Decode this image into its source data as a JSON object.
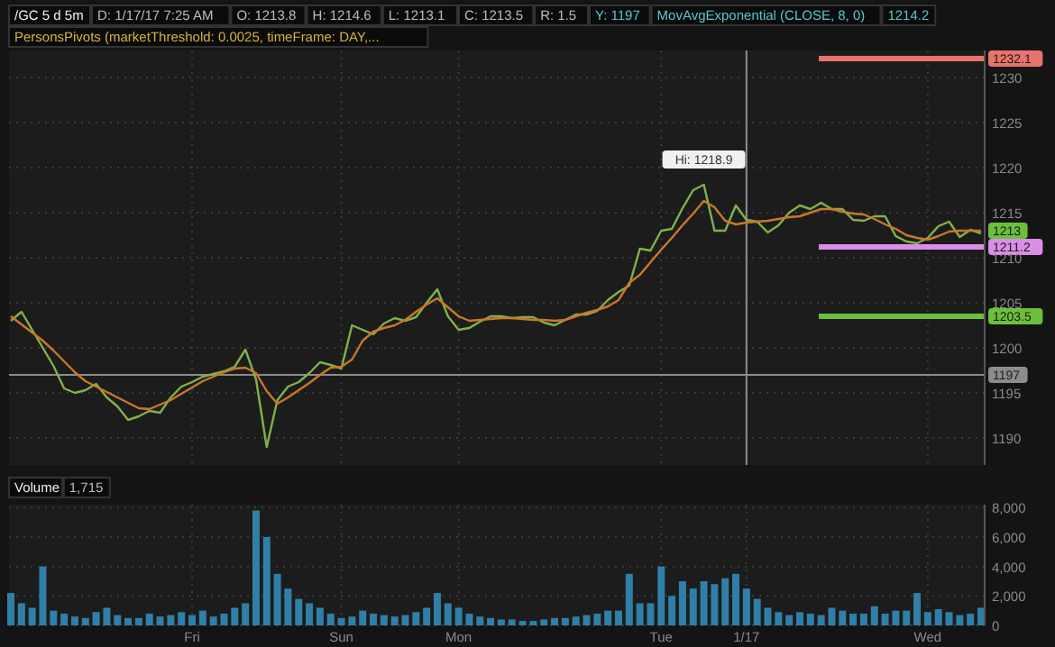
{
  "chart_data": [
    {
      "type": "line",
      "title": "/GC 5 d 5m",
      "annotations": [
        "D: 1/17/17 7:25 AM",
        "O: 1213.8",
        "H: 1214.6",
        "L: 1213.1",
        "C: 1213.5",
        "R: 1.5",
        "Y: 1197",
        "MovAvgExponential (CLOSE, 8, 0)",
        "1214.2",
        "PersonsPivots (marketThreshold: 0.0025, timeFrame: DAY,...",
        {
          "text": "Hi: 1218.9",
          "y": 1218.9
        },
        {
          "text": "1213",
          "y": 1213
        }
      ],
      "categories": [
        null,
        null,
        null,
        null,
        null,
        null,
        null,
        null,
        null,
        null,
        null,
        null,
        null,
        null,
        null,
        null,
        null,
        "Fri",
        null,
        null,
        null,
        null,
        null,
        null,
        null,
        null,
        null,
        null,
        null,
        null,
        null,
        "Sun",
        null,
        null,
        null,
        null,
        null,
        null,
        null,
        null,
        null,
        null,
        "Mon",
        null,
        null,
        null,
        null,
        null,
        null,
        null,
        null,
        null,
        null,
        null,
        null,
        null,
        null,
        null,
        null,
        null,
        null,
        "Tue",
        null,
        null,
        null,
        null,
        null,
        null,
        null,
        "1/17",
        null,
        null,
        null,
        null,
        null,
        null,
        null,
        null,
        null,
        null,
        null,
        null,
        null,
        null,
        null,
        null,
        "Wed",
        null,
        null,
        null,
        null,
        null
      ],
      "ylim": [
        1187,
        1233
      ],
      "yticks": [
        1190,
        1195,
        1200,
        1205,
        1210,
        1215,
        1220,
        1225,
        1230
      ],
      "tick_labels": "y",
      "grid": true,
      "line_style": "solid",
      "ref_lines": [
        {
          "axis": "y",
          "value": 1197,
          "label": "1197",
          "color": "#8c8c8c"
        },
        {
          "axis": "y",
          "value": 1232.1,
          "label": "1232.1",
          "color": "#e8736b"
        },
        {
          "axis": "y",
          "value": 1211.2,
          "label": "1211.2",
          "color": "#d98ee8"
        },
        {
          "axis": "y",
          "value": 1203.5,
          "label": "1203.5",
          "color": "#6cbf3b"
        },
        {
          "axis": "x",
          "value": "1/17",
          "color": "#8c8c8c"
        }
      ],
      "series": [
        {
          "color": "#7fb24a",
          "values": [
            1203.0,
            1204.0,
            1202.0,
            1200.0,
            1198.0,
            1195.5,
            1195.0,
            1195.3,
            1196.0,
            1194.5,
            1193.5,
            1192.0,
            1192.4,
            1193.0,
            1192.8,
            1194.5,
            1195.7,
            1196.2,
            1196.8,
            1197.1,
            1197.4,
            1197.9,
            1199.8,
            1196.5,
            1189.0,
            1194.2,
            1195.7,
            1196.2,
            1197.2,
            1198.4,
            1198.1,
            1197.7,
            1202.5,
            1202.0,
            1201.5,
            1202.7,
            1203.3,
            1203.0,
            1203.4,
            1205.0,
            1206.5,
            1203.5,
            1202.0,
            1202.2,
            1202.9,
            1203.5,
            1203.5,
            1203.3,
            1203.4,
            1203.4,
            1202.8,
            1202.5,
            1203.1,
            1203.7,
            1203.7,
            1204.1,
            1205.3,
            1206.2,
            1206.9,
            1211.0,
            1210.8,
            1213.0,
            1213.2,
            1215.5,
            1217.5,
            1218.1,
            1213.0,
            1213.0,
            1215.8,
            1214.2,
            1214.0,
            1212.8,
            1213.6,
            1215.0,
            1215.8,
            1215.4,
            1216.1,
            1215.4,
            1215.4,
            1214.2,
            1214.1,
            1214.6,
            1214.6,
            1212.4,
            1211.8,
            1211.6,
            1212.2,
            1213.5,
            1214.0,
            1212.3,
            1213.1,
            1212.7
          ]
        },
        {
          "color": "#c8782a",
          "values": [
            1203.5,
            1202.6,
            1201.7,
            1200.8,
            1199.7,
            1198.5,
            1197.3,
            1196.3,
            1195.7,
            1195.1,
            1194.5,
            1193.9,
            1193.3,
            1193.2,
            1193.7,
            1194.2,
            1194.9,
            1195.6,
            1196.3,
            1196.8,
            1197.3,
            1197.7,
            1197.8,
            1197.2,
            1195.2,
            1193.8,
            1194.5,
            1195.3,
            1196.1,
            1197.0,
            1197.8,
            1197.9,
            1198.7,
            1200.8,
            1201.8,
            1202.2,
            1202.5,
            1203.1,
            1204.0,
            1204.8,
            1205.5,
            1204.5,
            1203.5,
            1203.0,
            1203.1,
            1203.2,
            1203.3,
            1203.3,
            1203.2,
            1203.1,
            1203.1,
            1203.0,
            1203.1,
            1203.5,
            1203.9,
            1204.2,
            1204.6,
            1205.3,
            1207.2,
            1208.1,
            1209.5,
            1210.9,
            1212.2,
            1213.6,
            1214.9,
            1216.3,
            1215.6,
            1214.1,
            1213.7,
            1213.9,
            1214.0,
            1214.1,
            1214.3,
            1214.5,
            1214.6,
            1215.0,
            1215.4,
            1215.4,
            1215.1,
            1214.9,
            1214.8,
            1214.3,
            1213.7,
            1213.2,
            1212.5,
            1212.2,
            1212.0,
            1212.4,
            1212.9,
            1213.0,
            1213.0,
            1213.0
          ]
        }
      ]
    },
    {
      "type": "bar",
      "title": "Volume",
      "annotations": [
        "1,715"
      ],
      "ylim": [
        0,
        8200
      ],
      "categories": [
        null,
        null,
        null,
        null,
        null,
        null,
        null,
        null,
        null,
        null,
        null,
        null,
        null,
        null,
        null,
        null,
        null,
        "Fri",
        null,
        null,
        null,
        null,
        null,
        null,
        null,
        null,
        null,
        null,
        null,
        null,
        null,
        "Sun",
        null,
        null,
        null,
        null,
        null,
        null,
        null,
        null,
        null,
        null,
        "Mon",
        null,
        null,
        null,
        null,
        null,
        null,
        null,
        null,
        null,
        null,
        null,
        null,
        null,
        null,
        null,
        null,
        null,
        null,
        "Tue",
        null,
        null,
        null,
        null,
        null,
        null,
        null,
        "1/17",
        null,
        null,
        null,
        null,
        null,
        null,
        null,
        null,
        null,
        null,
        null,
        null,
        null,
        null,
        null,
        null,
        "Wed",
        null,
        null,
        null,
        null,
        null
      ],
      "yticks": [
        {
          "value": 0,
          "label": "0"
        },
        {
          "value": 2000,
          "label": "2,000"
        },
        {
          "value": 4000,
          "label": "4,000"
        },
        {
          "value": 6000,
          "label": "6,000"
        },
        {
          "value": 8000,
          "label": "8,000"
        }
      ],
      "grid": true,
      "color": "#2f7fa8",
      "values": [
        2200,
        1500,
        1200,
        4000,
        1000,
        800,
        600,
        500,
        900,
        1200,
        700,
        500,
        500,
        800,
        600,
        700,
        900,
        700,
        1000,
        600,
        800,
        1200,
        1500,
        7800,
        6000,
        3500,
        2500,
        1800,
        1500,
        1200,
        800,
        500,
        600,
        1000,
        800,
        700,
        600,
        700,
        900,
        1200,
        2200,
        1500,
        1200,
        800,
        600,
        500,
        400,
        400,
        300,
        300,
        400,
        500,
        500,
        600,
        700,
        800,
        1000,
        1000,
        3500,
        1500,
        1500,
        4000,
        2000,
        3000,
        2500,
        3000,
        2800,
        3200,
        3500,
        2500,
        1800,
        1200,
        900,
        700,
        900,
        800,
        700,
        1200,
        1000,
        800,
        800,
        1300,
        800,
        1000,
        1000,
        2200,
        900,
        1100,
        900,
        700,
        800,
        1200
      ]
    }
  ]
}
